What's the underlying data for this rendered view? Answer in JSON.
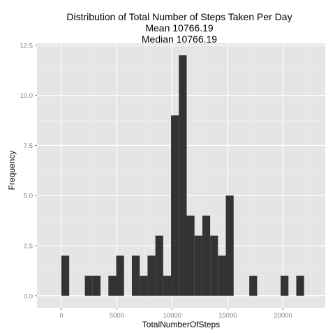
{
  "title_lines": [
    "Distribution of Total Number of Steps Taken Per Day",
    "Mean 10766.19",
    "Median 10766.19"
  ],
  "colors": {
    "panel_background": "#e5e5e5",
    "grid_major": "#ffffff",
    "grid_minor": "#f2f2f2",
    "bar_fill": "#333333",
    "tick_label": "#7f7f7f"
  },
  "chart_data": {
    "type": "bar",
    "title": "Distribution of Total Number of Steps Taken Per Day",
    "subtitle": [
      "Mean 10766.19",
      "Median 10766.19"
    ],
    "xlabel": "TotalNumberOfSteps",
    "ylabel": "Frequency",
    "xlim": [
      -2200,
      23800
    ],
    "ylim": [
      -0.6,
      12.6
    ],
    "grid": true,
    "x_ticks": [
      0,
      5000,
      10000,
      15000,
      20000
    ],
    "x_tick_labels": [
      "0",
      "5000",
      "10000",
      "15000",
      "20000"
    ],
    "y_ticks": [
      0,
      2.5,
      5,
      7.5,
      10,
      12.5
    ],
    "y_tick_labels": [
      "0.0",
      "2.5",
      "5.0",
      "7.5",
      "10.0",
      "12.5"
    ],
    "binwidth": 706,
    "bins": [
      {
        "start": 0,
        "end": 706,
        "count": 2
      },
      {
        "start": 2120,
        "end": 2826,
        "count": 1
      },
      {
        "start": 2826,
        "end": 3532,
        "count": 1
      },
      {
        "start": 4240,
        "end": 4946,
        "count": 1
      },
      {
        "start": 4946,
        "end": 5652,
        "count": 2
      },
      {
        "start": 6360,
        "end": 7066,
        "count": 2
      },
      {
        "start": 7066,
        "end": 7772,
        "count": 1
      },
      {
        "start": 7772,
        "end": 8478,
        "count": 2
      },
      {
        "start": 8478,
        "end": 9184,
        "count": 3
      },
      {
        "start": 9184,
        "end": 9890,
        "count": 1
      },
      {
        "start": 9890,
        "end": 10596,
        "count": 9
      },
      {
        "start": 10596,
        "end": 11302,
        "count": 12
      },
      {
        "start": 11302,
        "end": 12008,
        "count": 4
      },
      {
        "start": 12008,
        "end": 12714,
        "count": 3
      },
      {
        "start": 12714,
        "end": 13420,
        "count": 4
      },
      {
        "start": 13420,
        "end": 14126,
        "count": 3
      },
      {
        "start": 14126,
        "end": 14832,
        "count": 2
      },
      {
        "start": 14832,
        "end": 15538,
        "count": 5
      },
      {
        "start": 16950,
        "end": 17656,
        "count": 1
      },
      {
        "start": 19776,
        "end": 20482,
        "count": 1
      },
      {
        "start": 21188,
        "end": 21894,
        "count": 1
      }
    ]
  }
}
